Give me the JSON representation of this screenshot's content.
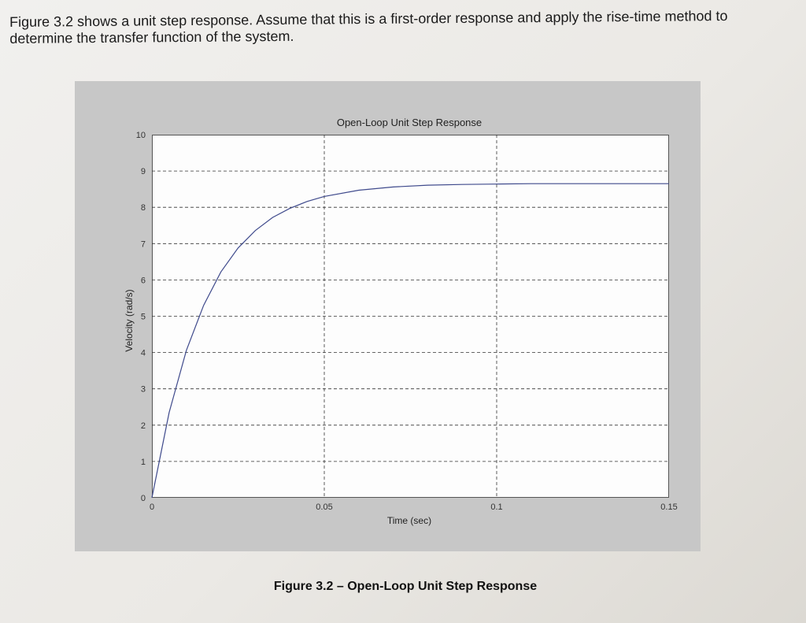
{
  "question": {
    "text": "Figure 3.2 shows a unit step response. Assume that this is a first-order response and apply the rise-time method to determine the transfer function of the system."
  },
  "figure_caption": "Figure 3.2 – Open-Loop Unit Step Response",
  "colors": {
    "curve": "#3f4a8c",
    "grid": "#333333",
    "panel": "#c7c7c7"
  },
  "chart_data": {
    "type": "line",
    "title": "Open-Loop Unit Step Response",
    "xlabel": "Time (sec)",
    "ylabel": "Velocity (rad/s)",
    "xlim": [
      0,
      0.15
    ],
    "ylim": [
      0,
      10
    ],
    "xticks": [
      0,
      0.05,
      0.1,
      0.15
    ],
    "xtick_labels": [
      "0",
      "0.05",
      "0.1",
      "0.15"
    ],
    "yticks": [
      0,
      1,
      2,
      3,
      4,
      5,
      6,
      7,
      8,
      9,
      10
    ],
    "ytick_labels": [
      "0",
      "1",
      "2",
      "3",
      "4",
      "5",
      "6",
      "7",
      "8",
      "9",
      "10"
    ],
    "grid": true,
    "series": [
      {
        "x": [
          0,
          0.005,
          0.01,
          0.015,
          0.02,
          0.025,
          0.03,
          0.035,
          0.04,
          0.045,
          0.05,
          0.06,
          0.07,
          0.08,
          0.09,
          0.1,
          0.11,
          0.12,
          0.13,
          0.14,
          0.15
        ],
        "y": [
          0,
          2.35,
          4.06,
          5.3,
          6.22,
          6.88,
          7.36,
          7.72,
          7.97,
          8.16,
          8.3,
          8.47,
          8.56,
          8.61,
          8.63,
          8.64,
          8.65,
          8.65,
          8.65,
          8.65,
          8.65
        ]
      }
    ]
  }
}
